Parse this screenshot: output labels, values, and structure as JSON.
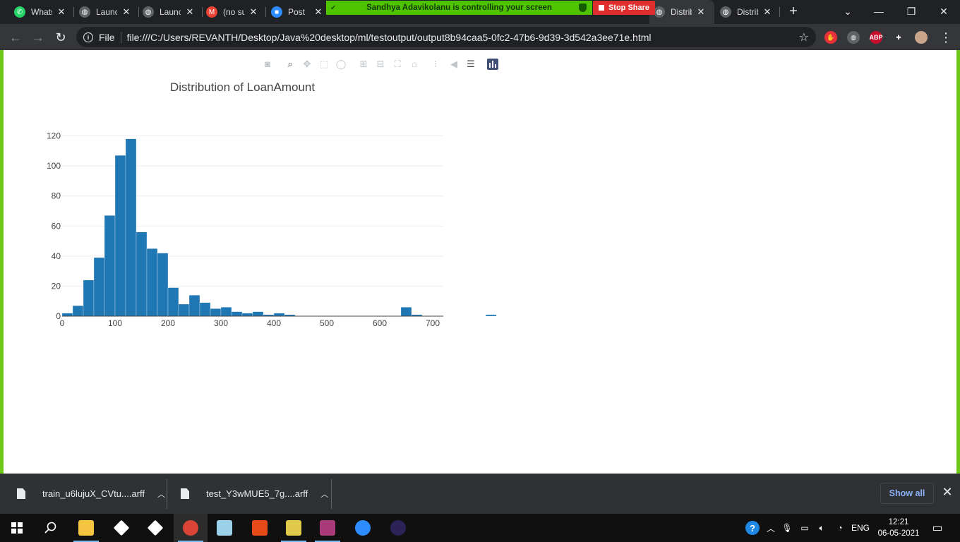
{
  "tabs": [
    {
      "title": "WhatsApp",
      "icon": "whatsapp-icon",
      "color": "#25d366",
      "glyph": "✆"
    },
    {
      "title": "Launch",
      "icon": "globe-icon",
      "color": "#5f6368",
      "glyph": "◍"
    },
    {
      "title": "Launch",
      "icon": "globe-icon",
      "color": "#5f6368",
      "glyph": "◍"
    },
    {
      "title": "(no subject)",
      "icon": "gmail-icon",
      "color": "#ea4335",
      "glyph": "M"
    },
    {
      "title": "Post",
      "icon": "zoom-icon",
      "color": "#2d8cff",
      "glyph": "■"
    },
    {
      "title": "Distribution",
      "icon": "globe-icon",
      "color": "#5f6368",
      "glyph": "◍"
    },
    {
      "title": "Distribution",
      "icon": "globe-icon",
      "color": "#5f6368",
      "glyph": "◍"
    }
  ],
  "share_banner": {
    "text": "Sandhya Adavikolanu is controlling your screen",
    "stop_label": "Stop Share"
  },
  "address_bar": {
    "scheme": "File",
    "url": "file:///C:/Users/REVANTH/Desktop/Java%20desktop/ml/testoutput/output8b94caa5-0fc2-47b6-9d39-3d542a3ee71e.html"
  },
  "extensions": [
    {
      "name": "hand-extension-icon",
      "color": "#e8303a",
      "glyph": "✋"
    },
    {
      "name": "globe-extension-icon",
      "color": "#5f6368",
      "glyph": "◍"
    },
    {
      "name": "adblock-plus-icon",
      "color": "#c70d2c",
      "glyph": "ABP"
    },
    {
      "name": "puzzle-extensions-icon",
      "color": "#35363a",
      "glyph": "✚"
    },
    {
      "name": "profile-avatar-icon",
      "color": "#c8a58a",
      "glyph": ""
    }
  ],
  "chart_data": {
    "type": "bar",
    "title": "Distribution of LoanAmount",
    "xlabel": "",
    "ylabel": "",
    "bin_width": 20,
    "x_start": 0,
    "values": [
      2,
      7,
      24,
      39,
      67,
      107,
      118,
      56,
      45,
      42,
      19,
      8,
      14,
      9,
      5,
      6,
      3,
      2,
      3,
      1,
      2,
      1,
      0,
      0,
      0,
      0,
      0,
      0,
      0,
      0,
      0,
      0,
      6,
      1,
      0,
      0,
      0,
      0,
      0,
      0,
      1,
      0,
      0,
      1,
      2,
      0,
      0,
      0,
      0,
      1,
      0,
      0,
      0,
      0,
      0,
      0,
      0,
      0,
      0,
      0,
      0,
      0,
      1
    ],
    "xlim": [
      0,
      720
    ],
    "ylim": [
      0,
      124
    ],
    "xticks": [
      0,
      100,
      200,
      300,
      400,
      500,
      600,
      700
    ],
    "yticks": [
      0,
      20,
      40,
      60,
      80,
      100,
      120
    ],
    "grid": true,
    "bar_color": "#1f77b4"
  },
  "downloads": [
    {
      "name": "train_u6lujuX_CVtu....arff"
    },
    {
      "name": "test_Y3wMUE5_7g....arff"
    }
  ],
  "shelf": {
    "show_all_label": "Show all"
  },
  "taskbar": {
    "apps": [
      {
        "name": "file-explorer-icon",
        "color": "#f5c542"
      },
      {
        "name": "dropbox-icon",
        "color": "#ffffff"
      },
      {
        "name": "bolt-app-icon",
        "color": "#ffffff"
      },
      {
        "name": "chrome-icon",
        "color": "#db4437"
      },
      {
        "name": "notes-app-icon",
        "color": "#9ad0e8"
      },
      {
        "name": "office-icon",
        "color": "#e64a19"
      },
      {
        "name": "python-idle-icon",
        "color": "#e0c84a"
      },
      {
        "name": "winrar-icon",
        "color": "#a83a7a"
      },
      {
        "name": "zoom-app-icon",
        "color": "#2d8cff"
      },
      {
        "name": "eclipse-icon",
        "color": "#2c2255"
      }
    ],
    "language": "ENG",
    "time": "12:21",
    "date": "06-05-2021"
  }
}
